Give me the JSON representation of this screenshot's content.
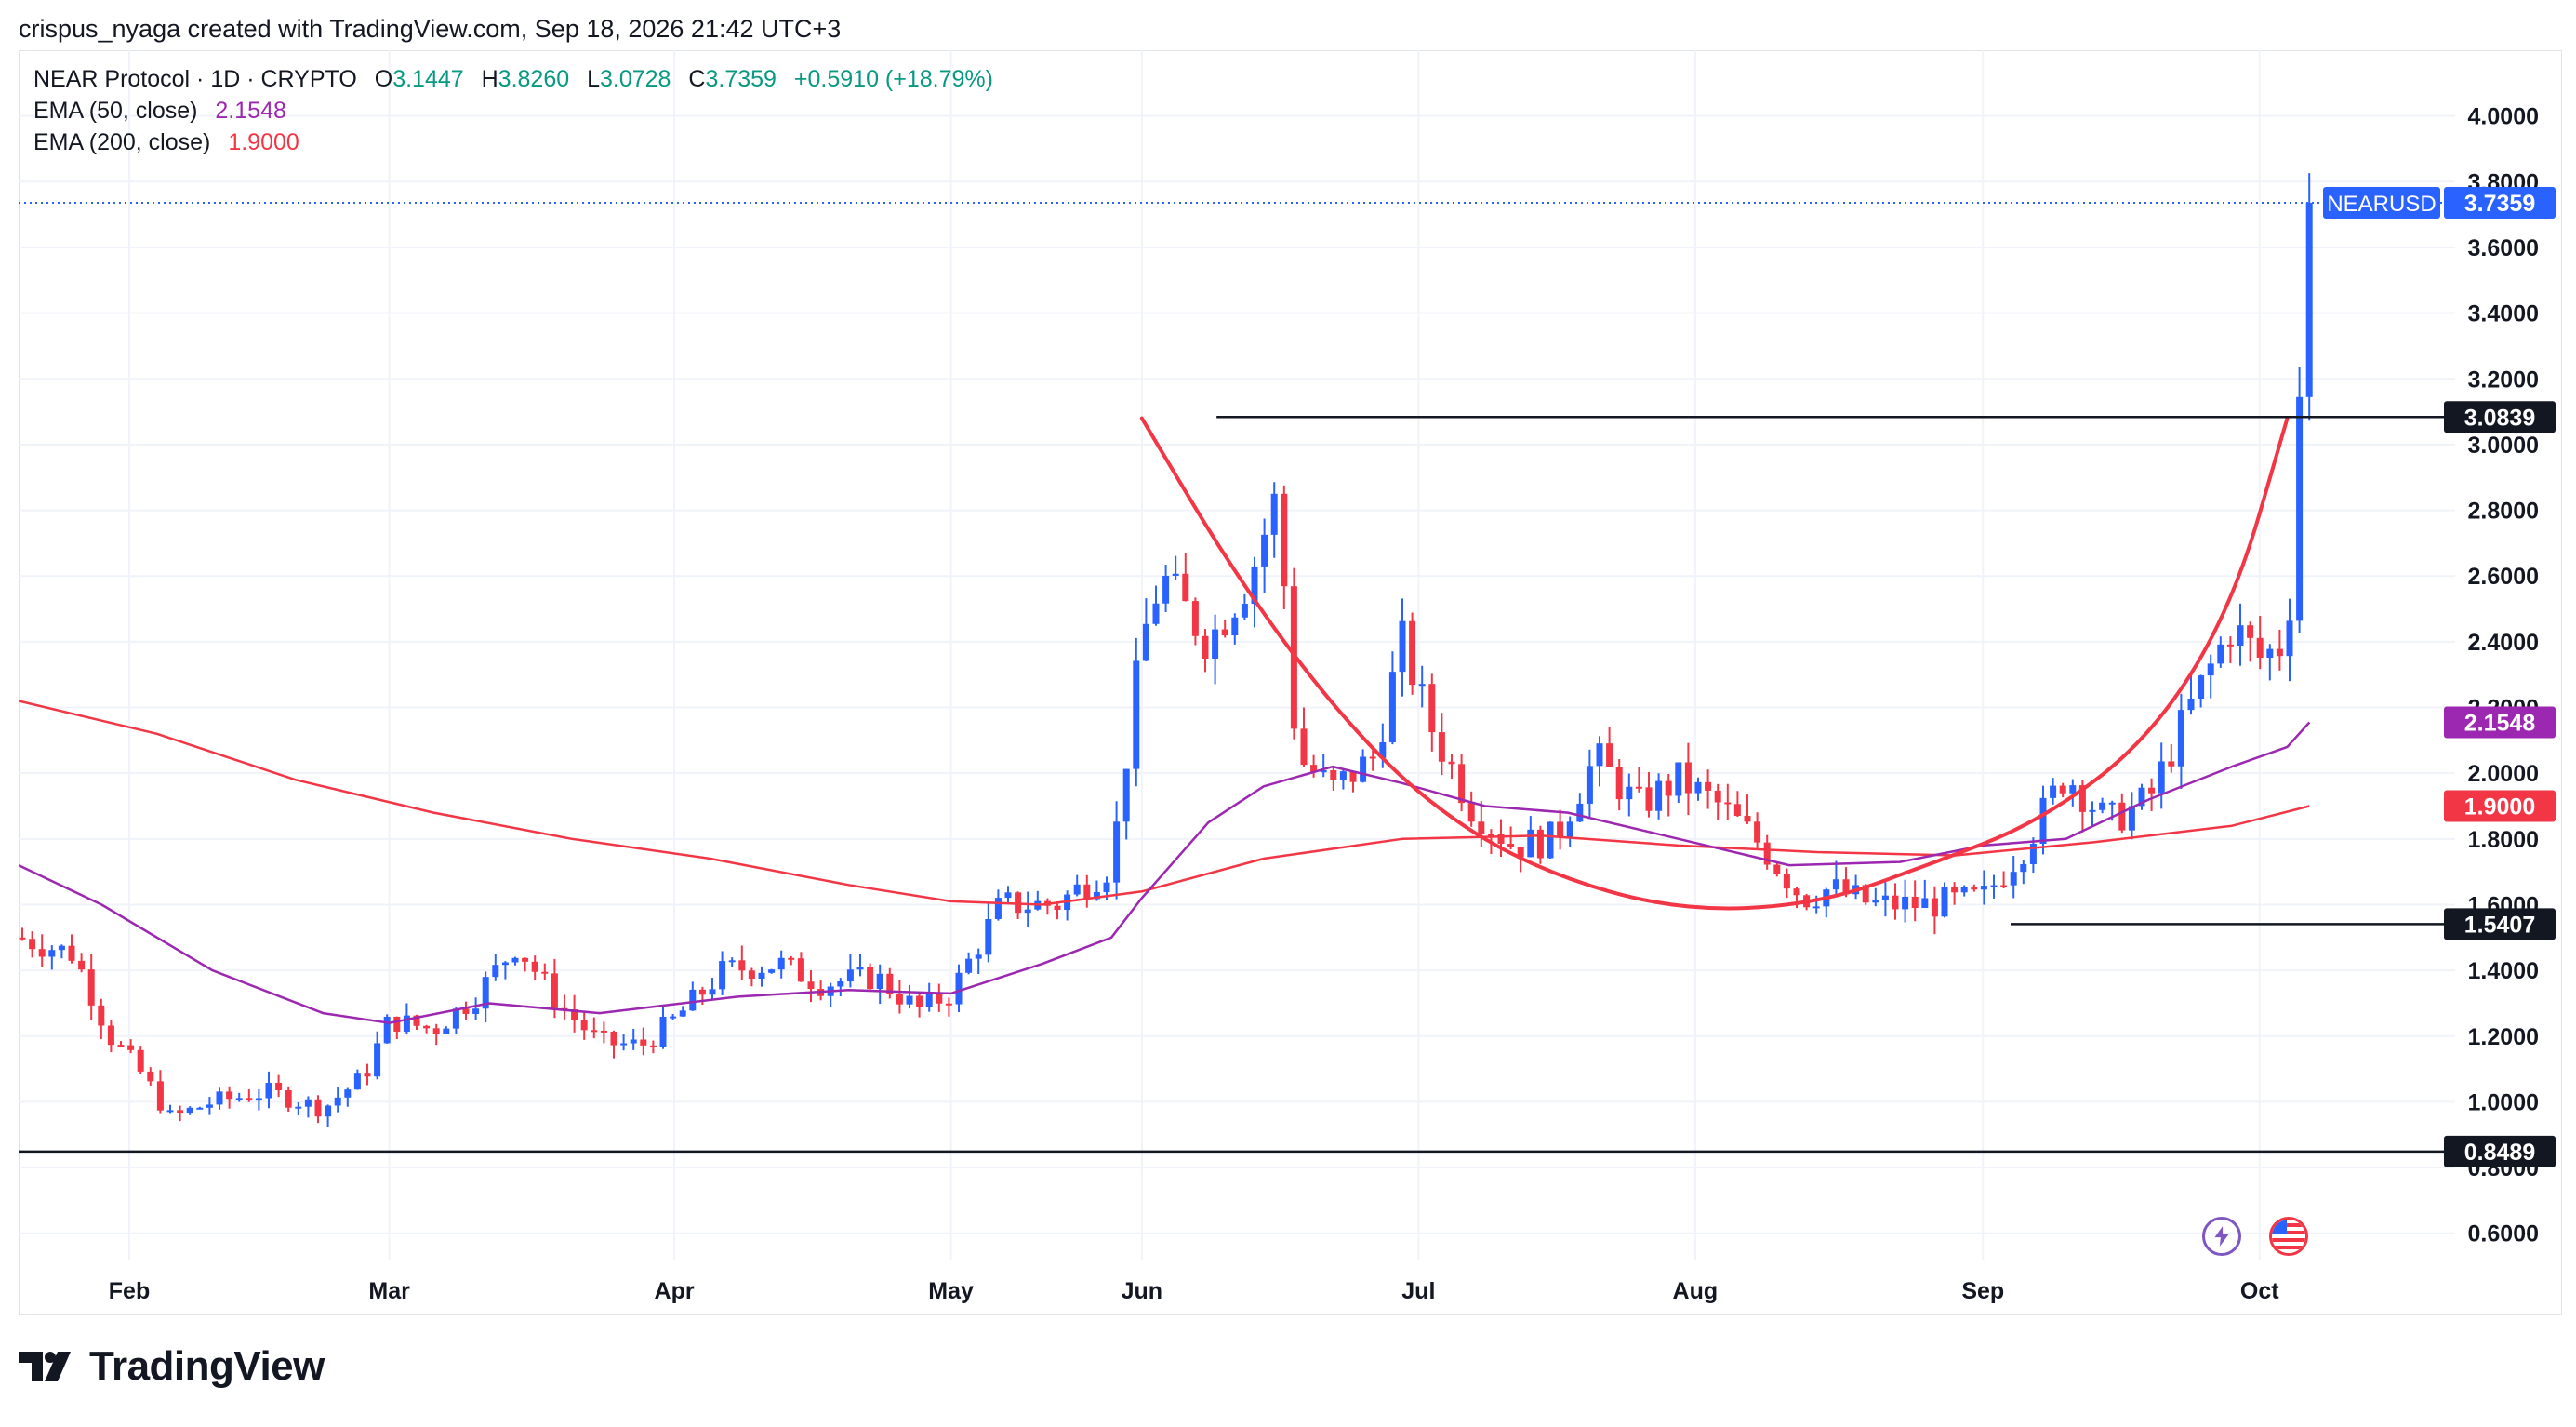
{
  "header": {
    "attribution": "crispus_nyaga created with TradingView.com, Sep 18, 2026 21:42 UTC+3"
  },
  "legend": {
    "symbol": "NEAR Protocol · 1D · CRYPTO",
    "o_label": "O",
    "o_value": "3.1447",
    "h_label": "H",
    "h_value": "3.8260",
    "l_label": "L",
    "l_value": "3.0728",
    "c_label": "C",
    "c_value": "3.7359",
    "change": "+0.5910 (+18.79%)",
    "ema50_label": "EMA (50, close)",
    "ema50_value": "2.1548",
    "ema200_label": "EMA (200, close)",
    "ema200_value": "1.9000"
  },
  "branding": {
    "logo_text": "TradingView"
  },
  "colors": {
    "up": "#2962ff",
    "down": "#f23645",
    "ema50": "#9c27b0",
    "ema200": "#f23645",
    "curve": "#f23645",
    "level": "#131722",
    "price_tag": "#2962ff"
  },
  "icons": [
    "tv-logo-icon",
    "lightning-icon",
    "us-flag-icon"
  ],
  "chart_data": {
    "type": "candlestick",
    "title": "NEAR Protocol · 1D · CRYPTO",
    "y_axis_ticks": [
      "4.0000",
      "3.8000",
      "3.6000",
      "3.4000",
      "3.2000",
      "3.0000",
      "2.8000",
      "2.6000",
      "2.4000",
      "2.2000",
      "2.0000",
      "1.8000",
      "1.6000",
      "1.4000",
      "1.2000",
      "1.0000",
      "0.8000",
      "0.6000"
    ],
    "x_axis_ticks": [
      "Feb",
      "Mar",
      "Apr",
      "May",
      "Jun",
      "Jul",
      "Aug",
      "Sep",
      "Oct"
    ],
    "ylim": [
      0.52,
      4.2
    ],
    "grid": true,
    "price_labels": [
      {
        "text": "NEARUSD",
        "value": "3.7359",
        "y": 3.7359,
        "color": "#2962ff"
      },
      {
        "text": "",
        "value": "3.0839",
        "y": 3.0839,
        "color": "#131722"
      },
      {
        "text": "",
        "value": "2.1548",
        "y": 2.1548,
        "color": "#9c27b0"
      },
      {
        "text": "",
        "value": "1.9000",
        "y": 1.9,
        "color": "#f23645"
      },
      {
        "text": "",
        "value": "1.5407",
        "y": 1.5407,
        "color": "#131722"
      },
      {
        "text": "",
        "value": "0.8489",
        "y": 0.8489,
        "color": "#131722"
      }
    ],
    "horizontal_levels": [
      {
        "y": 3.0839,
        "from_month": 4.33,
        "to_month": 8.93
      },
      {
        "y": 1.5407,
        "from_month": 7.2,
        "to_month": 8.93
      },
      {
        "y": 0.8489,
        "from_month": 0,
        "to_month": 8.93
      }
    ],
    "cup_curve_points": [
      [
        4.06,
        3.08
      ],
      [
        4.4,
        2.6
      ],
      [
        4.75,
        2.2
      ],
      [
        5.1,
        1.9
      ],
      [
        5.5,
        1.7
      ],
      [
        6.0,
        1.58
      ],
      [
        6.5,
        1.6
      ],
      [
        6.9,
        1.72
      ],
      [
        7.3,
        1.85
      ],
      [
        7.7,
        2.1
      ],
      [
        8.0,
        2.5
      ],
      [
        8.2,
        3.08
      ]
    ],
    "month_positions": {
      "Feb": 0.4,
      "Mar": 1.34,
      "Apr": 2.37,
      "May": 3.37,
      "Jun": 4.06,
      "Jul": 5.06,
      "Aug": 6.06,
      "Sep": 7.1,
      "Oct": 8.1
    },
    "price_anchors": [
      [
        0,
        1.5
      ],
      [
        0.2,
        1.45
      ],
      [
        0.33,
        1.2
      ],
      [
        0.45,
        1.08
      ],
      [
        0.55,
        0.95
      ],
      [
        0.7,
        1.0
      ],
      [
        0.9,
        1.03
      ],
      [
        1.1,
        0.98
      ],
      [
        1.25,
        1.08
      ],
      [
        1.34,
        1.25
      ],
      [
        1.5,
        1.22
      ],
      [
        1.65,
        1.32
      ],
      [
        1.8,
        1.48
      ],
      [
        1.95,
        1.3
      ],
      [
        2.1,
        1.18
      ],
      [
        2.25,
        1.17
      ],
      [
        2.37,
        1.25
      ],
      [
        2.55,
        1.4
      ],
      [
        2.75,
        1.42
      ],
      [
        2.9,
        1.36
      ],
      [
        3.1,
        1.38
      ],
      [
        3.25,
        1.28
      ],
      [
        3.37,
        1.33
      ],
      [
        3.55,
        1.6
      ],
      [
        3.75,
        1.6
      ],
      [
        3.95,
        1.72
      ],
      [
        4.06,
        2.4
      ],
      [
        4.13,
        2.6
      ],
      [
        4.3,
        2.4
      ],
      [
        4.45,
        2.6
      ],
      [
        4.55,
        2.85
      ],
      [
        4.62,
        2.05
      ],
      [
        4.75,
        1.95
      ],
      [
        4.9,
        2.05
      ],
      [
        5.0,
        2.4
      ],
      [
        5.1,
        2.15
      ],
      [
        5.25,
        1.9
      ],
      [
        5.4,
        1.78
      ],
      [
        5.55,
        1.8
      ],
      [
        5.7,
        2.05
      ],
      [
        5.85,
        1.9
      ],
      [
        6.0,
        1.98
      ],
      [
        6.15,
        1.9
      ],
      [
        6.3,
        1.78
      ],
      [
        6.45,
        1.62
      ],
      [
        6.55,
        1.65
      ],
      [
        6.7,
        1.6
      ],
      [
        6.9,
        1.6
      ],
      [
        7.1,
        1.62
      ],
      [
        7.25,
        1.78
      ],
      [
        7.4,
        2.0
      ],
      [
        7.55,
        1.85
      ],
      [
        7.7,
        1.92
      ],
      [
        7.85,
        2.2
      ],
      [
        8.0,
        2.45
      ],
      [
        8.1,
        2.35
      ],
      [
        8.2,
        2.4
      ],
      [
        8.25,
        3.14
      ],
      [
        8.28,
        3.7359
      ]
    ],
    "ema50_points": [
      [
        0,
        1.72
      ],
      [
        0.3,
        1.6
      ],
      [
        0.7,
        1.4
      ],
      [
        1.1,
        1.27
      ],
      [
        1.34,
        1.24
      ],
      [
        1.7,
        1.3
      ],
      [
        2.1,
        1.27
      ],
      [
        2.6,
        1.32
      ],
      [
        3.0,
        1.34
      ],
      [
        3.37,
        1.33
      ],
      [
        3.7,
        1.42
      ],
      [
        3.95,
        1.5
      ],
      [
        4.06,
        1.62
      ],
      [
        4.3,
        1.85
      ],
      [
        4.5,
        1.96
      ],
      [
        4.75,
        2.02
      ],
      [
        5.0,
        1.97
      ],
      [
        5.3,
        1.9
      ],
      [
        5.6,
        1.88
      ],
      [
        6.0,
        1.8
      ],
      [
        6.4,
        1.72
      ],
      [
        6.8,
        1.73
      ],
      [
        7.1,
        1.78
      ],
      [
        7.4,
        1.8
      ],
      [
        7.7,
        1.92
      ],
      [
        8.0,
        2.02
      ],
      [
        8.2,
        2.08
      ],
      [
        8.28,
        2.1548
      ]
    ],
    "ema200_points": [
      [
        0,
        2.22
      ],
      [
        0.5,
        2.12
      ],
      [
        1.0,
        1.98
      ],
      [
        1.5,
        1.88
      ],
      [
        2.0,
        1.8
      ],
      [
        2.5,
        1.74
      ],
      [
        3.0,
        1.66
      ],
      [
        3.37,
        1.61
      ],
      [
        3.7,
        1.6
      ],
      [
        4.06,
        1.64
      ],
      [
        4.5,
        1.74
      ],
      [
        5.0,
        1.8
      ],
      [
        5.5,
        1.81
      ],
      [
        6.0,
        1.78
      ],
      [
        6.5,
        1.76
      ],
      [
        7.0,
        1.75
      ],
      [
        7.5,
        1.79
      ],
      [
        8.0,
        1.84
      ],
      [
        8.28,
        1.9
      ]
    ]
  }
}
